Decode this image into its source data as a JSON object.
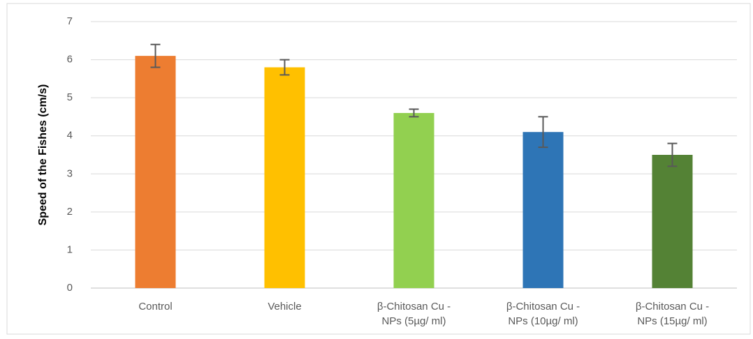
{
  "chart_data": {
    "type": "bar",
    "y_label": "Speed of the Fishes (cm/s)",
    "categories": [
      "Control",
      "Vehicle",
      "β-Chitosan Cu -\nNPs (5µg/ ml)",
      "β-Chitosan Cu -\nNPs (10µg/ ml)",
      "β-Chitosan Cu -\nNPs (15µg/ ml)"
    ],
    "values": [
      6.1,
      5.8,
      4.6,
      4.1,
      3.5
    ],
    "errors": [
      0.3,
      0.2,
      0.1,
      0.4,
      0.3
    ],
    "colors": [
      "#ed7d31",
      "#ffc000",
      "#92d050",
      "#2e75b6",
      "#548235"
    ],
    "ylim": [
      0,
      7
    ],
    "yticks": [
      0,
      1,
      2,
      3,
      4,
      5,
      6,
      7
    ],
    "grid": true
  }
}
